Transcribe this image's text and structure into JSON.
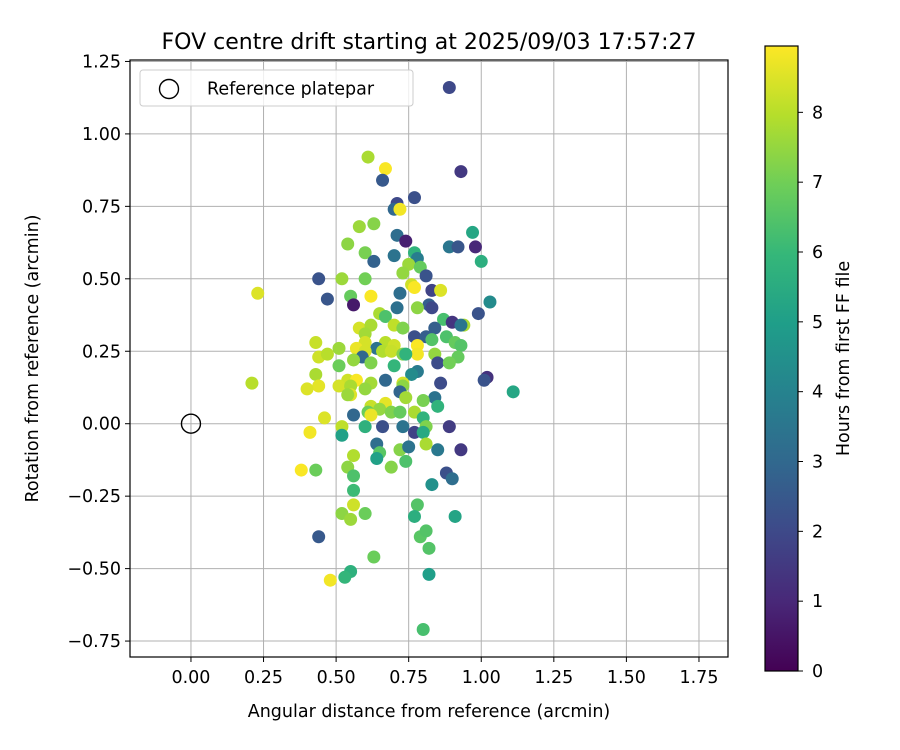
{
  "chart_data": {
    "type": "scatter",
    "title": "FOV centre drift starting at 2025/09/03 17:57:27",
    "xlabel": "Angular distance from reference (arcmin)",
    "ylabel": "Rotation from reference (arcmin)",
    "xlim": [
      -0.21,
      1.85
    ],
    "ylim": [
      -0.805,
      1.255
    ],
    "xticks": [
      0.0,
      0.25,
      0.5,
      0.75,
      1.0,
      1.25,
      1.5,
      1.75
    ],
    "xtick_labels": [
      "0.00",
      "0.25",
      "0.50",
      "0.75",
      "1.00",
      "1.25",
      "1.50",
      "1.75"
    ],
    "yticks": [
      -0.75,
      -0.5,
      -0.25,
      0.0,
      0.25,
      0.5,
      0.75,
      1.0,
      1.25
    ],
    "ytick_labels": [
      "−0.75",
      "−0.50",
      "−0.25",
      "0.00",
      "0.25",
      "0.50",
      "0.75",
      "1.00",
      "1.25"
    ],
    "grid": true,
    "legend": {
      "location": "top-left",
      "entries": [
        "Reference platepar"
      ]
    },
    "reference_point": {
      "x": 0.0,
      "y": 0.0,
      "label": "Reference platepar"
    },
    "colorbar": {
      "label": "Hours from first FF file",
      "colormap": "viridis",
      "vmin": 0,
      "vmax": 8.95,
      "ticks": [
        0,
        1,
        2,
        3,
        4,
        5,
        6,
        7,
        8
      ],
      "tick_labels": [
        "0",
        "1",
        "2",
        "3",
        "4",
        "5",
        "6",
        "7",
        "8"
      ],
      "stops": [
        "#440154",
        "#482878",
        "#3e4989",
        "#31688e",
        "#26828e",
        "#1f9e89",
        "#35b779",
        "#6ece58",
        "#b5de2b",
        "#fde725"
      ]
    },
    "points": [
      [
        0.89,
        1.16,
        2.0
      ],
      [
        0.93,
        0.87,
        1.5
      ],
      [
        0.61,
        0.92,
        7.8
      ],
      [
        0.67,
        0.88,
        8.9
      ],
      [
        0.66,
        0.84,
        2.5
      ],
      [
        0.77,
        0.78,
        2.2
      ],
      [
        0.71,
        0.76,
        2.0
      ],
      [
        0.7,
        0.74,
        3.0
      ],
      [
        0.72,
        0.74,
        8.8
      ],
      [
        0.58,
        0.68,
        7.6
      ],
      [
        0.63,
        0.69,
        7.3
      ],
      [
        0.97,
        0.66,
        5.3
      ],
      [
        0.71,
        0.65,
        3.2
      ],
      [
        0.74,
        0.63,
        0.8
      ],
      [
        0.54,
        0.62,
        7.4
      ],
      [
        0.89,
        0.61,
        3.5
      ],
      [
        0.92,
        0.61,
        2.4
      ],
      [
        0.98,
        0.61,
        1.0
      ],
      [
        0.6,
        0.59,
        7.1
      ],
      [
        0.77,
        0.59,
        5.8
      ],
      [
        0.7,
        0.58,
        3.4
      ],
      [
        0.78,
        0.57,
        3.8
      ],
      [
        0.63,
        0.56,
        2.8
      ],
      [
        0.75,
        0.55,
        7.6
      ],
      [
        0.79,
        0.54,
        6.8
      ],
      [
        1.0,
        0.56,
        5.6
      ],
      [
        0.73,
        0.52,
        7.5
      ],
      [
        0.81,
        0.51,
        2.3
      ],
      [
        0.44,
        0.5,
        2.3
      ],
      [
        0.52,
        0.5,
        7.6
      ],
      [
        0.6,
        0.5,
        7.0
      ],
      [
        0.76,
        0.48,
        8.3
      ],
      [
        0.77,
        0.47,
        8.9
      ],
      [
        0.83,
        0.46,
        1.8
      ],
      [
        0.86,
        0.46,
        8.5
      ],
      [
        0.23,
        0.45,
        8.5
      ],
      [
        0.62,
        0.44,
        8.9
      ],
      [
        0.55,
        0.44,
        6.8
      ],
      [
        0.47,
        0.43,
        2.4
      ],
      [
        0.72,
        0.45,
        3.2
      ],
      [
        1.03,
        0.42,
        4.3
      ],
      [
        0.82,
        0.41,
        2.7
      ],
      [
        0.83,
        0.4,
        2.0
      ],
      [
        0.56,
        0.41,
        0.6
      ],
      [
        0.71,
        0.4,
        3.3
      ],
      [
        0.78,
        0.4,
        7.4
      ],
      [
        0.99,
        0.38,
        2.3
      ],
      [
        0.65,
        0.38,
        7.8
      ],
      [
        0.67,
        0.37,
        6.4
      ],
      [
        0.87,
        0.36,
        6.3
      ],
      [
        0.9,
        0.35,
        1.4
      ],
      [
        0.94,
        0.34,
        7.8
      ],
      [
        0.93,
        0.34,
        3.5
      ],
      [
        0.84,
        0.33,
        2.7
      ],
      [
        0.58,
        0.33,
        8.4
      ],
      [
        0.62,
        0.34,
        7.8
      ],
      [
        0.7,
        0.34,
        8.1
      ],
      [
        0.73,
        0.33,
        7.2
      ],
      [
        0.6,
        0.31,
        7.7
      ],
      [
        0.77,
        0.3,
        2.2
      ],
      [
        0.81,
        0.3,
        2.7
      ],
      [
        0.83,
        0.29,
        6.5
      ],
      [
        0.88,
        0.3,
        6.4
      ],
      [
        0.91,
        0.28,
        6.8
      ],
      [
        0.43,
        0.28,
        8.2
      ],
      [
        0.6,
        0.28,
        8.4
      ],
      [
        0.67,
        0.28,
        8.0
      ],
      [
        0.7,
        0.27,
        8.3
      ],
      [
        0.78,
        0.27,
        8.9
      ],
      [
        0.64,
        0.26,
        3.4
      ],
      [
        0.93,
        0.27,
        6.5
      ],
      [
        0.51,
        0.26,
        7.6
      ],
      [
        0.57,
        0.26,
        8.7
      ],
      [
        0.6,
        0.25,
        8.4
      ],
      [
        0.66,
        0.25,
        7.9
      ],
      [
        0.69,
        0.25,
        8.2
      ],
      [
        0.73,
        0.24,
        7.2
      ],
      [
        0.78,
        0.24,
        8.8
      ],
      [
        0.44,
        0.23,
        8.3
      ],
      [
        0.47,
        0.24,
        8.0
      ],
      [
        0.59,
        0.23,
        3.0
      ],
      [
        0.74,
        0.24,
        5.8
      ],
      [
        0.84,
        0.24,
        7.5
      ],
      [
        0.92,
        0.23,
        6.8
      ],
      [
        0.56,
        0.22,
        7.5
      ],
      [
        0.62,
        0.21,
        7.2
      ],
      [
        0.85,
        0.21,
        2.1
      ],
      [
        0.89,
        0.21,
        7.0
      ],
      [
        0.7,
        0.2,
        5.9
      ],
      [
        0.51,
        0.2,
        6.9
      ],
      [
        0.78,
        0.18,
        3.7
      ],
      [
        0.76,
        0.17,
        4.3
      ],
      [
        0.43,
        0.17,
        7.8
      ],
      [
        1.02,
        0.16,
        1.3
      ],
      [
        0.54,
        0.15,
        8.3
      ],
      [
        0.57,
        0.15,
        8.9
      ],
      [
        0.62,
        0.14,
        7.7
      ],
      [
        0.67,
        0.15,
        3.0
      ],
      [
        0.73,
        0.14,
        8.4
      ],
      [
        0.86,
        0.14,
        2.1
      ],
      [
        1.01,
        0.15,
        2.3
      ],
      [
        0.21,
        0.14,
        8.0
      ],
      [
        0.44,
        0.13,
        8.6
      ],
      [
        0.51,
        0.13,
        8.4
      ],
      [
        0.55,
        0.13,
        7.8
      ],
      [
        0.6,
        0.12,
        7.5
      ],
      [
        0.73,
        0.13,
        7.4
      ],
      [
        0.4,
        0.12,
        8.5
      ],
      [
        0.72,
        0.11,
        2.9
      ],
      [
        1.11,
        0.11,
        5.3
      ],
      [
        0.55,
        0.1,
        8.5
      ],
      [
        0.54,
        0.1,
        7.6
      ],
      [
        0.74,
        0.09,
        7.7
      ],
      [
        0.84,
        0.09,
        3.4
      ],
      [
        0.8,
        0.08,
        7.1
      ],
      [
        0.67,
        0.07,
        8.6
      ],
      [
        0.62,
        0.06,
        8.2
      ],
      [
        0.85,
        0.06,
        5.8
      ],
      [
        0.61,
        0.04,
        6.9
      ],
      [
        0.65,
        0.05,
        7.5
      ],
      [
        0.69,
        0.04,
        7.2
      ],
      [
        0.72,
        0.04,
        6.8
      ],
      [
        0.77,
        0.04,
        7.8
      ],
      [
        0.46,
        0.02,
        8.5
      ],
      [
        0.56,
        0.03,
        3.0
      ],
      [
        0.62,
        0.03,
        8.7
      ],
      [
        0.8,
        0.02,
        5.8
      ],
      [
        0.52,
        -0.01,
        8.1
      ],
      [
        0.6,
        -0.01,
        5.7
      ],
      [
        0.66,
        -0.01,
        2.2
      ],
      [
        0.73,
        -0.01,
        3.4
      ],
      [
        0.81,
        -0.01,
        7.2
      ],
      [
        0.89,
        -0.01,
        1.6
      ],
      [
        0.41,
        -0.03,
        8.8
      ],
      [
        0.52,
        -0.04,
        5.1
      ],
      [
        0.77,
        -0.03,
        1.8
      ],
      [
        0.8,
        -0.03,
        5.4
      ],
      [
        0.64,
        -0.07,
        3.2
      ],
      [
        0.81,
        -0.07,
        7.8
      ],
      [
        0.72,
        -0.09,
        7.3
      ],
      [
        0.75,
        -0.08,
        3.4
      ],
      [
        0.85,
        -0.09,
        3.6
      ],
      [
        0.93,
        -0.09,
        1.5
      ],
      [
        0.65,
        -0.1,
        6.6
      ],
      [
        0.56,
        -0.11,
        7.9
      ],
      [
        0.64,
        -0.12,
        5.1
      ],
      [
        0.74,
        -0.13,
        6.4
      ],
      [
        0.54,
        -0.15,
        7.4
      ],
      [
        0.69,
        -0.15,
        7.3
      ],
      [
        0.38,
        -0.16,
        8.9
      ],
      [
        0.43,
        -0.16,
        6.9
      ],
      [
        0.88,
        -0.17,
        2.2
      ],
      [
        0.56,
        -0.18,
        6.4
      ],
      [
        0.9,
        -0.19,
        3.2
      ],
      [
        0.83,
        -0.21,
        4.5
      ],
      [
        0.56,
        -0.23,
        6.1
      ],
      [
        0.56,
        -0.28,
        8.3
      ],
      [
        0.52,
        -0.31,
        7.4
      ],
      [
        0.6,
        -0.31,
        6.9
      ],
      [
        0.78,
        -0.28,
        6.5
      ],
      [
        0.77,
        -0.32,
        5.6
      ],
      [
        0.91,
        -0.32,
        5.2
      ],
      [
        0.55,
        -0.33,
        7.6
      ],
      [
        0.44,
        -0.39,
        2.5
      ],
      [
        0.79,
        -0.39,
        6.6
      ],
      [
        0.81,
        -0.37,
        6.5
      ],
      [
        0.82,
        -0.43,
        6.5
      ],
      [
        0.63,
        -0.46,
        6.9
      ],
      [
        0.55,
        -0.51,
        5.7
      ],
      [
        0.82,
        -0.52,
        5.0
      ],
      [
        0.53,
        -0.53,
        5.9
      ],
      [
        0.48,
        -0.54,
        8.8
      ],
      [
        0.8,
        -0.71,
        6.3
      ]
    ]
  }
}
